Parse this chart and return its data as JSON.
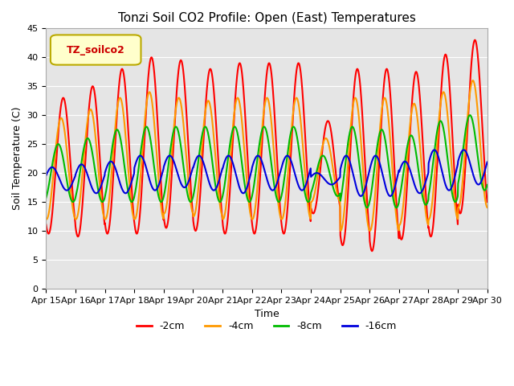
{
  "title": "Tonzi Soil CO2 Profile: Open (East) Temperatures",
  "xlabel": "Time",
  "ylabel": "Soil Temperature (C)",
  "ylim": [
    0,
    45
  ],
  "background_color": "#e5e5e5",
  "legend_label": "TZ_soilco2",
  "legend_bg": "#ffffcc",
  "legend_border": "#bbaa00",
  "series_colors": [
    "#ff0000",
    "#ff9900",
    "#00bb00",
    "#0000dd"
  ],
  "series_labels": [
    "-2cm",
    "-4cm",
    "-8cm",
    "-16cm"
  ],
  "tick_labels": [
    "Apr 15",
    "Apr 16",
    "Apr 17",
    "Apr 18",
    "Apr 19",
    "Apr 20",
    "Apr 21",
    "Apr 22",
    "Apr 23",
    "Apr 24",
    "Apr 25",
    "Apr 26",
    "Apr 27",
    "Apr 28",
    "Apr 29",
    "Apr 30"
  ],
  "yticks": [
    0,
    5,
    10,
    15,
    20,
    25,
    30,
    35,
    40,
    45
  ],
  "line_width": 1.5,
  "n_days": 15,
  "peak_time": 0.583,
  "series": [
    {
      "label": "-2cm",
      "color": "#ff0000",
      "peaks": [
        33,
        35,
        38,
        40,
        39.5,
        38,
        39,
        39,
        39,
        29,
        38,
        38,
        37.5,
        40.5,
        43
      ],
      "troughs": [
        9.5,
        9,
        9.5,
        9.5,
        10.5,
        10,
        9.5,
        9.5,
        9.5,
        13,
        7.5,
        6.5,
        8.5,
        9,
        13
      ],
      "phase_lag": 0.0
    },
    {
      "label": "-4cm",
      "color": "#ff9900",
      "peaks": [
        29.5,
        31,
        33,
        34,
        33,
        32.5,
        33,
        33,
        33,
        26,
        33,
        33,
        32,
        34,
        36
      ],
      "troughs": [
        12,
        12,
        12,
        12,
        13,
        12.5,
        12,
        12,
        12,
        15,
        10,
        10,
        11,
        12,
        14
      ],
      "phase_lag": 0.07
    },
    {
      "label": "-8cm",
      "color": "#00bb00",
      "peaks": [
        25,
        26,
        27.5,
        28,
        28,
        28,
        28,
        28,
        28,
        23,
        28,
        27.5,
        26.5,
        29,
        30
      ],
      "troughs": [
        15,
        15,
        15,
        15,
        15,
        15,
        15,
        15,
        15,
        16,
        14,
        14,
        14.5,
        15,
        17
      ],
      "phase_lag": 0.17
    },
    {
      "label": "-16cm",
      "color": "#0000dd",
      "peaks": [
        21,
        21.5,
        22,
        23,
        23,
        23,
        23,
        23,
        23,
        20,
        23,
        23,
        22,
        24,
        24
      ],
      "troughs": [
        17,
        16.5,
        16.5,
        17,
        17.5,
        17,
        16.5,
        17,
        17,
        18,
        16,
        16,
        16.5,
        17,
        18
      ],
      "phase_lag": 0.38
    }
  ]
}
